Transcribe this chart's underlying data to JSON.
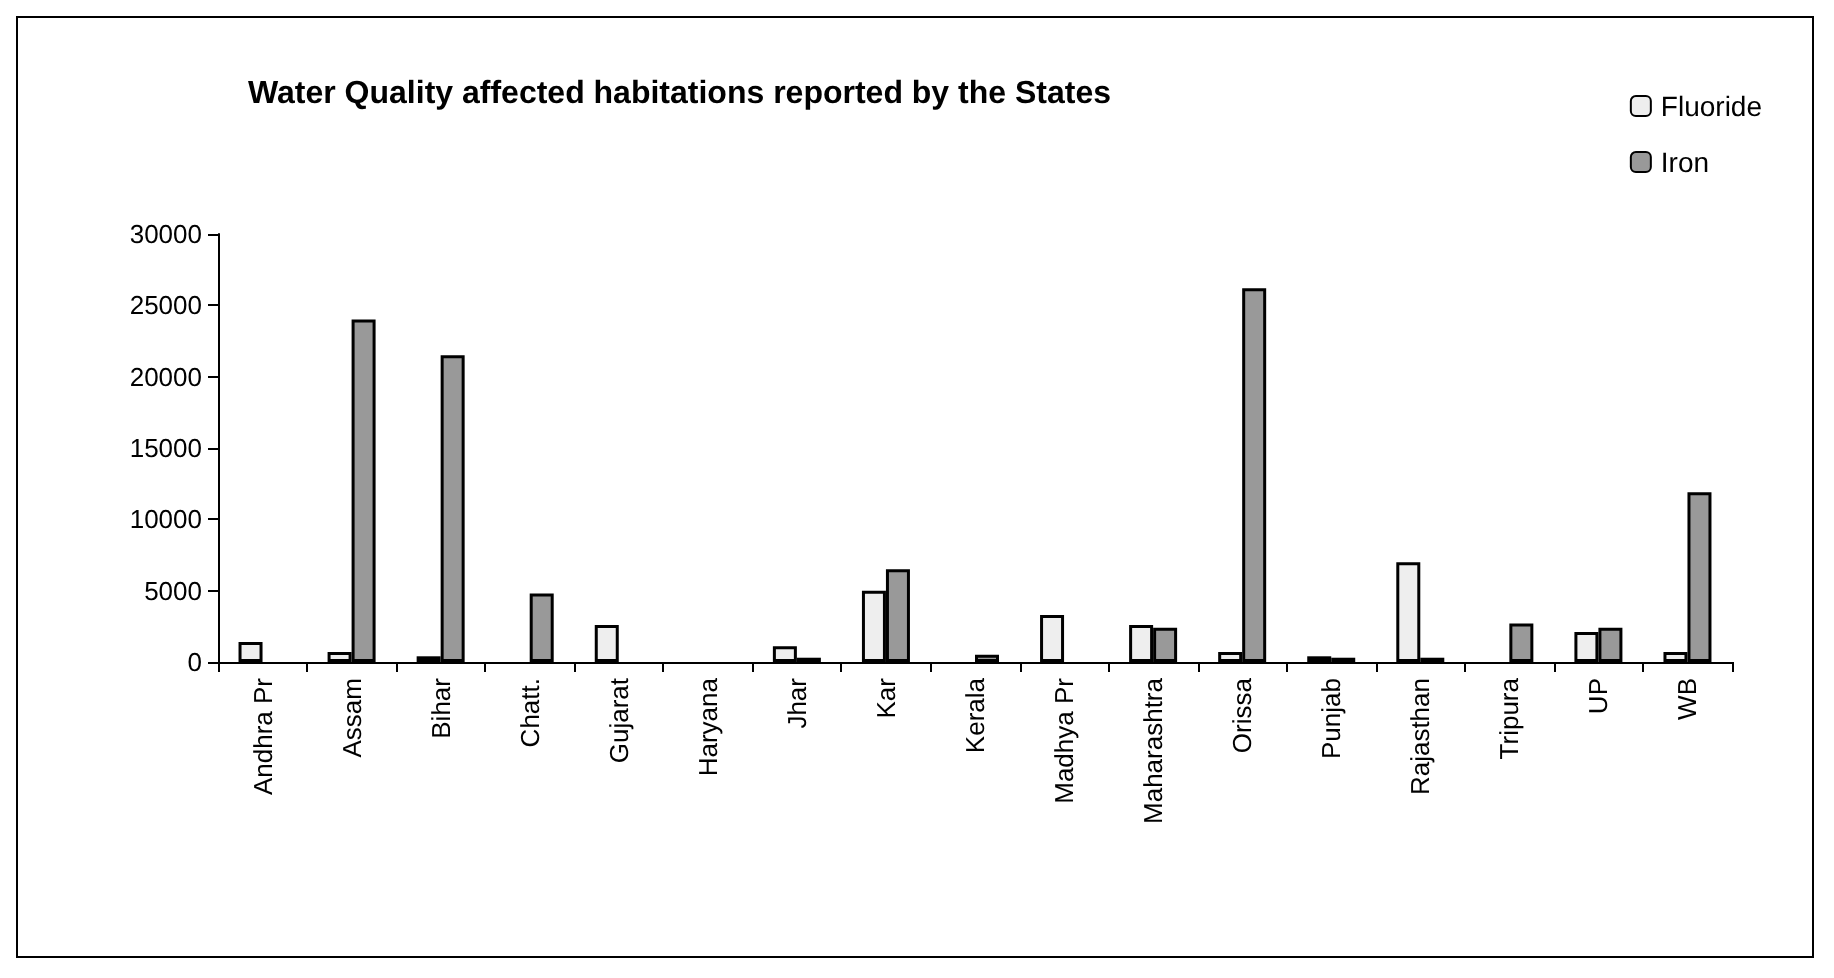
{
  "chart_data": {
    "type": "bar",
    "title": "Water Quality affected habitations reported by the States",
    "categories": [
      "Andhra Pr",
      "Assam",
      "Bihar",
      "Chatt.",
      "Gujarat",
      "Haryana",
      "Jhar",
      "Kar",
      "Kerala",
      "Madhya Pr",
      "Maharashtra",
      "Orissa",
      "Punjab",
      "Rajasthan",
      "Tripura",
      "UP",
      "WB"
    ],
    "series": [
      {
        "name": "Fluoride",
        "color": "#eeeeee",
        "values": [
          1400,
          700,
          400,
          0,
          2600,
          0,
          1100,
          5000,
          0,
          3300,
          2600,
          700,
          400,
          7000,
          0,
          2100,
          700
        ]
      },
      {
        "name": "Iron",
        "color": "#999999",
        "values": [
          0,
          24000,
          21500,
          4800,
          0,
          0,
          300,
          6500,
          500,
          0,
          2400,
          26200,
          300,
          300,
          2700,
          2400,
          11900
        ]
      }
    ],
    "ylim": [
      0,
      30000
    ],
    "yticks": [
      0,
      5000,
      10000,
      15000,
      20000,
      25000,
      30000
    ],
    "grid": false,
    "legend": "top right"
  }
}
